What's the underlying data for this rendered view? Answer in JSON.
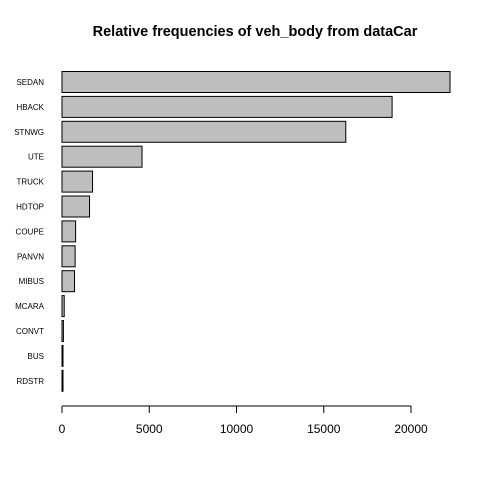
{
  "chart_data": {
    "type": "bar",
    "orientation": "horizontal",
    "title": "Relative frequencies of veh_body from dataCar",
    "xlabel": "",
    "ylabel": "",
    "categories": [
      "SEDAN",
      "HBACK",
      "STNWG",
      "UTE",
      "TRUCK",
      "HDTOP",
      "COUPE",
      "PANVN",
      "MIBUS",
      "MCARA",
      "CONVT",
      "BUS",
      "RDSTR"
    ],
    "values": [
      22233,
      18915,
      16261,
      4586,
      1750,
      1579,
      780,
      752,
      717,
      127,
      81,
      48,
      27
    ],
    "xlim": [
      0,
      22233
    ],
    "xticks": [
      0,
      5000,
      10000,
      15000,
      20000
    ],
    "grid": false,
    "legend": "none",
    "colors": {
      "bar_fill": "#bebebe",
      "bar_stroke": "#000000",
      "axis": "#000000"
    }
  }
}
